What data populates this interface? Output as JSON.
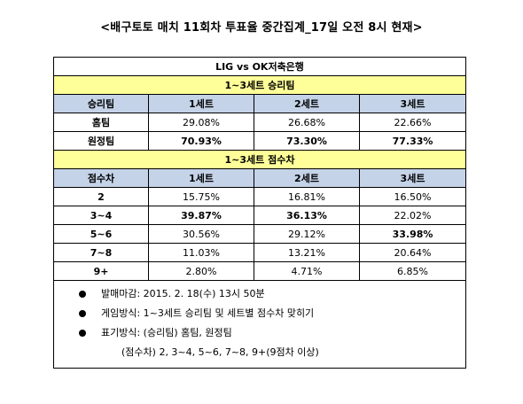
{
  "title": "<배구토토 매치 11회차 투표율 중간집계_17일 오전 8시 현재>",
  "match": "LIG vs OK저축은행",
  "section1": {
    "title": "1~3세트 승리팀",
    "headers": [
      "승리팀",
      "1세트",
      "2세트",
      "3세트"
    ],
    "rows": [
      {
        "label": "홈팀",
        "values": [
          "29.08%",
          "26.68%",
          "22.66%"
        ],
        "bold": [
          false,
          false,
          false
        ]
      },
      {
        "label": "원정팀",
        "values": [
          "70.93%",
          "73.30%",
          "77.33%"
        ],
        "bold": [
          true,
          true,
          true
        ]
      }
    ]
  },
  "section2": {
    "title": "1~3세트 점수차",
    "headers": [
      "점수차",
      "1세트",
      "2세트",
      "3세트"
    ],
    "rows": [
      {
        "label": "2",
        "values": [
          "15.75%",
          "16.81%",
          "16.50%"
        ],
        "bold": [
          false,
          false,
          false
        ]
      },
      {
        "label": "3~4",
        "values": [
          "39.87%",
          "36.13%",
          "22.02%"
        ],
        "bold": [
          true,
          true,
          false
        ]
      },
      {
        "label": "5~6",
        "values": [
          "30.56%",
          "29.12%",
          "33.98%"
        ],
        "bold": [
          false,
          false,
          true
        ]
      },
      {
        "label": "7~8",
        "values": [
          "11.03%",
          "13.21%",
          "20.64%"
        ],
        "bold": [
          false,
          false,
          false
        ]
      },
      {
        "label": "9+",
        "values": [
          "2.80%",
          "4.71%",
          "6.85%"
        ],
        "bold": [
          false,
          false,
          false
        ]
      }
    ]
  },
  "notes": [
    "발매마감: 2015. 2. 18(수) 13시 50분",
    "게임방식: 1~3세트 승리팀 및 세트별 점수차 맞히기",
    "표기방식: (승리팀) 홈팀, 원정팀"
  ],
  "note_sub": "(점수차) 2, 3~4, 5~6, 7~8, 9+(9점차 이상)",
  "colors": {
    "section_band": "#ffff99",
    "header_band": "#c5d3e8"
  }
}
